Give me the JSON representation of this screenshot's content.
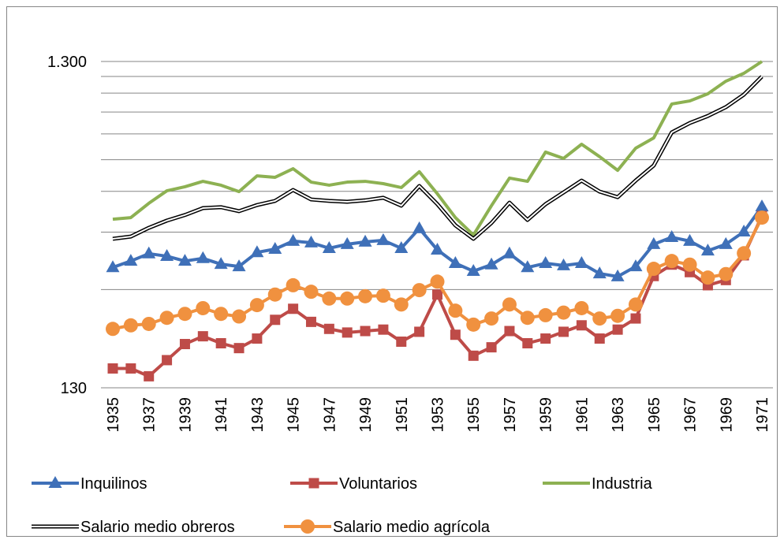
{
  "chart_data": {
    "type": "line",
    "log_scale": true,
    "grid": true,
    "minor_grid": true,
    "legend": "bottom",
    "categories": [
      1935,
      null,
      1937,
      null,
      1939,
      null,
      1941,
      null,
      1943,
      null,
      1945,
      null,
      1947,
      null,
      1949,
      null,
      1951,
      null,
      1953,
      null,
      1955,
      null,
      1957,
      null,
      1959,
      null,
      1961,
      null,
      1963,
      null,
      1965,
      null,
      1967,
      null,
      1969,
      null,
      1971
    ],
    "ylim": [
      130,
      1300
    ],
    "yticks": [
      130,
      {
        "value": 1300,
        "label": "1.300"
      }
    ],
    "series": [
      {
        "name": "Inquilinos",
        "color": "#3f70b8",
        "marker": "triangle",
        "values": [
          304,
          318,
          335,
          329,
          318,
          324,
          311,
          306,
          338,
          346,
          366,
          362,
          348,
          358,
          364,
          368,
          348,
          400,
          344,
          313,
          296,
          310,
          335,
          304,
          313,
          308,
          313,
          291,
          285,
          306,
          358,
          376,
          366,
          342,
          358,
          391,
          467
        ]
      },
      {
        "name": "Voluntarios",
        "color": "#be4b48",
        "marker": "square",
        "values": [
          149,
          149,
          141,
          158,
          177,
          187,
          178,
          172,
          184,
          210,
          227,
          207,
          197,
          192,
          194,
          196,
          180,
          193,
          251,
          189,
          163,
          173,
          194,
          178,
          184,
          193,
          202,
          184,
          196,
          212,
          286,
          310,
          294,
          268,
          278,
          331,
          437
        ]
      },
      {
        "name": "Industria",
        "color": "#8db152",
        "marker": "none",
        "values": [
          427,
          432,
          478,
          522,
          537,
          558,
          543,
          519,
          580,
          574,
          610,
          555,
          543,
          555,
          558,
          549,
          534,
          597,
          511,
          432,
          382,
          470,
          571,
          558,
          686,
          656,
          725,
          664,
          603,
          705,
          758,
          963,
          984,
          1035,
          1131,
          1196,
          1300
        ]
      },
      {
        "name": "Salario medio obreros",
        "color": "#000000",
        "marker": "none",
        "double": true,
        "values": [
          372,
          378,
          402,
          423,
          440,
          462,
          465,
          452,
          472,
          486,
          525,
          491,
          486,
          483,
          488,
          497,
          470,
          540,
          475,
          409,
          372,
          416,
          480,
          425,
          475,
          516,
          561,
          519,
          499,
          561,
          624,
          788,
          842,
          885,
          942,
          1029,
          1169
        ]
      },
      {
        "name": "Salario medio agrícola",
        "color": "#f0913f",
        "marker": "circle",
        "values": [
          197,
          202,
          204,
          213,
          219,
          228,
          219,
          215,
          233,
          251,
          268,
          256,
          244,
          244,
          248,
          249,
          234,
          259,
          275,
          224,
          203,
          212,
          234,
          213,
          217,
          221,
          228,
          212,
          216,
          234,
          301,
          318,
          310,
          283,
          290,
          336,
          432
        ]
      }
    ]
  }
}
